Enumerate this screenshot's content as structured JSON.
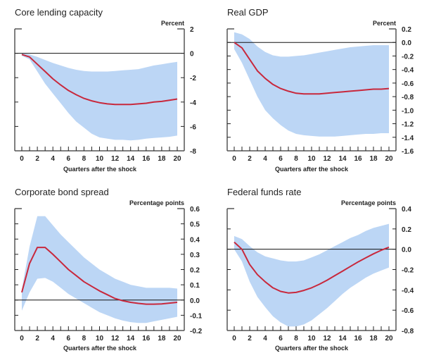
{
  "colors": {
    "band": "#bcd6f5",
    "line": "#c8283c",
    "axis": "#555555",
    "zero": "#111111"
  },
  "chart_data": [
    {
      "type": "line",
      "title": "Core lending capacity",
      "unit_label": "Percent",
      "xlabel": "Quarters after the shock",
      "x": [
        0,
        1,
        2,
        3,
        4,
        5,
        6,
        7,
        8,
        9,
        10,
        11,
        12,
        13,
        14,
        15,
        16,
        17,
        18,
        19,
        20
      ],
      "x_tick_labels": [
        "0",
        "2",
        "4",
        "6",
        "8",
        "10",
        "12",
        "14",
        "16",
        "18",
        "20"
      ],
      "xlim": [
        0,
        20
      ],
      "ylim": [
        -8,
        2
      ],
      "y_ticks": [
        2,
        0,
        -2,
        -4,
        -6,
        -8
      ],
      "y_tick_labels": [
        "2",
        "0",
        "-2",
        "-4",
        "-6",
        "-8"
      ],
      "zero_line": true,
      "series": [
        {
          "name": "Response",
          "values": [
            -0.1,
            -0.3,
            -0.9,
            -1.5,
            -2.1,
            -2.6,
            -3.05,
            -3.4,
            -3.7,
            -3.9,
            -4.05,
            -4.15,
            -4.2,
            -4.2,
            -4.2,
            -4.15,
            -4.1,
            -4.0,
            -3.95,
            -3.85,
            -3.75
          ]
        },
        {
          "name": "Upper band",
          "values": [
            0,
            -0.1,
            -0.3,
            -0.55,
            -0.8,
            -1.0,
            -1.2,
            -1.35,
            -1.45,
            -1.5,
            -1.5,
            -1.5,
            -1.45,
            -1.4,
            -1.35,
            -1.3,
            -1.15,
            -1.0,
            -0.9,
            -0.8,
            -0.7
          ]
        },
        {
          "name": "Lower band",
          "values": [
            -0.2,
            -0.5,
            -1.5,
            -2.5,
            -3.3,
            -4.1,
            -4.9,
            -5.6,
            -6.1,
            -6.6,
            -6.9,
            -7.0,
            -7.1,
            -7.1,
            -7.15,
            -7.1,
            -7.0,
            -6.95,
            -6.9,
            -6.85,
            -6.75
          ]
        }
      ]
    },
    {
      "type": "line",
      "title": "Real GDP",
      "unit_label": "Percent",
      "xlabel": "Quarters after the shock",
      "x": [
        0,
        1,
        2,
        3,
        4,
        5,
        6,
        7,
        8,
        9,
        10,
        11,
        12,
        13,
        14,
        15,
        16,
        17,
        18,
        19,
        20
      ],
      "x_tick_labels": [
        "0",
        "2",
        "4",
        "6",
        "8",
        "10",
        "12",
        "14",
        "16",
        "18",
        "20"
      ],
      "xlim": [
        0,
        20
      ],
      "ylim": [
        -1.6,
        0.2
      ],
      "y_ticks": [
        0.2,
        0.0,
        -0.2,
        -0.4,
        -0.6,
        -0.8,
        -1.0,
        -1.2,
        -1.4,
        -1.6
      ],
      "y_tick_labels": [
        "0.2",
        "0.0",
        "-0.2",
        "-0.4",
        "-0.6",
        "-0.8",
        "-1.0",
        "-1.2",
        "-1.4",
        "-1.6"
      ],
      "zero_line": true,
      "series": [
        {
          "name": "Response",
          "values": [
            0.0,
            -0.08,
            -0.25,
            -0.42,
            -0.53,
            -0.62,
            -0.68,
            -0.72,
            -0.75,
            -0.76,
            -0.76,
            -0.76,
            -0.75,
            -0.74,
            -0.73,
            -0.72,
            -0.71,
            -0.7,
            -0.69,
            -0.69,
            -0.68
          ]
        },
        {
          "name": "Upper band",
          "values": [
            0.15,
            0.12,
            0.05,
            -0.06,
            -0.14,
            -0.19,
            -0.21,
            -0.21,
            -0.2,
            -0.19,
            -0.17,
            -0.15,
            -0.13,
            -0.11,
            -0.09,
            -0.07,
            -0.06,
            -0.05,
            -0.04,
            -0.04,
            -0.04
          ]
        },
        {
          "name": "Lower band",
          "values": [
            -0.1,
            -0.3,
            -0.55,
            -0.8,
            -1.0,
            -1.12,
            -1.22,
            -1.3,
            -1.35,
            -1.37,
            -1.38,
            -1.39,
            -1.39,
            -1.39,
            -1.38,
            -1.37,
            -1.36,
            -1.35,
            -1.35,
            -1.34,
            -1.34
          ]
        }
      ]
    },
    {
      "type": "line",
      "title": "Corporate bond spread",
      "unit_label": "Percentage points",
      "xlabel": "Quarters after the shock",
      "x": [
        0,
        1,
        2,
        3,
        4,
        5,
        6,
        7,
        8,
        9,
        10,
        11,
        12,
        13,
        14,
        15,
        16,
        17,
        18,
        19,
        20
      ],
      "x_tick_labels": [
        "0",
        "2",
        "4",
        "6",
        "8",
        "10",
        "12",
        "14",
        "16",
        "18",
        "20"
      ],
      "xlim": [
        0,
        20
      ],
      "ylim": [
        -0.2,
        0.6
      ],
      "y_ticks": [
        0.6,
        0.5,
        0.4,
        0.3,
        0.2,
        0.1,
        0.0,
        -0.1,
        -0.2
      ],
      "y_tick_labels": [
        "0.6",
        "0.5",
        "0.4",
        "0.3",
        "0.2",
        "0.1",
        "0.0",
        "-0.1",
        "-0.2"
      ],
      "zero_line": true,
      "series": [
        {
          "name": "Response",
          "values": [
            0.05,
            0.24,
            0.345,
            0.345,
            0.3,
            0.25,
            0.2,
            0.16,
            0.12,
            0.09,
            0.06,
            0.035,
            0.01,
            -0.005,
            -0.015,
            -0.022,
            -0.027,
            -0.027,
            -0.025,
            -0.02,
            -0.015
          ]
        },
        {
          "name": "Upper band",
          "values": [
            0.07,
            0.35,
            0.55,
            0.55,
            0.49,
            0.43,
            0.38,
            0.33,
            0.28,
            0.24,
            0.2,
            0.17,
            0.14,
            0.12,
            0.1,
            0.09,
            0.08,
            0.08,
            0.08,
            0.08,
            0.075
          ]
        },
        {
          "name": "Lower band",
          "values": [
            -0.07,
            0.05,
            0.14,
            0.145,
            0.12,
            0.08,
            0.04,
            0.01,
            -0.02,
            -0.05,
            -0.08,
            -0.1,
            -0.12,
            -0.135,
            -0.145,
            -0.15,
            -0.15,
            -0.14,
            -0.13,
            -0.12,
            -0.11
          ]
        }
      ]
    },
    {
      "type": "line",
      "title": "Federal funds rate",
      "unit_label": "Percentage points",
      "xlabel": "Quarters after the shock",
      "x": [
        0,
        1,
        2,
        3,
        4,
        5,
        6,
        7,
        8,
        9,
        10,
        11,
        12,
        13,
        14,
        15,
        16,
        17,
        18,
        19,
        20
      ],
      "x_tick_labels": [
        "0",
        "2",
        "4",
        "6",
        "8",
        "10",
        "12",
        "14",
        "16",
        "18",
        "20"
      ],
      "xlim": [
        0,
        20
      ],
      "ylim": [
        -0.8,
        0.4
      ],
      "y_ticks": [
        0.4,
        0.2,
        0.0,
        -0.2,
        -0.4,
        -0.6,
        -0.8
      ],
      "y_tick_labels": [
        "0.4",
        "0.2",
        "0.0",
        "-0.2",
        "-0.4",
        "-0.6",
        "-0.8"
      ],
      "zero_line": true,
      "series": [
        {
          "name": "Response",
          "values": [
            0.07,
            0.0,
            -0.15,
            -0.25,
            -0.32,
            -0.38,
            -0.415,
            -0.43,
            -0.425,
            -0.405,
            -0.38,
            -0.345,
            -0.305,
            -0.26,
            -0.215,
            -0.17,
            -0.125,
            -0.085,
            -0.045,
            -0.01,
            0.02
          ]
        },
        {
          "name": "Upper band",
          "values": [
            0.13,
            0.1,
            0.03,
            -0.03,
            -0.07,
            -0.09,
            -0.11,
            -0.12,
            -0.12,
            -0.11,
            -0.08,
            -0.05,
            -0.01,
            0.03,
            0.07,
            0.11,
            0.14,
            0.18,
            0.21,
            0.23,
            0.25
          ]
        },
        {
          "name": "Lower band",
          "values": [
            0.0,
            -0.12,
            -0.32,
            -0.47,
            -0.57,
            -0.66,
            -0.72,
            -0.76,
            -0.76,
            -0.74,
            -0.7,
            -0.64,
            -0.58,
            -0.51,
            -0.44,
            -0.38,
            -0.33,
            -0.28,
            -0.24,
            -0.21,
            -0.18
          ]
        }
      ]
    }
  ]
}
